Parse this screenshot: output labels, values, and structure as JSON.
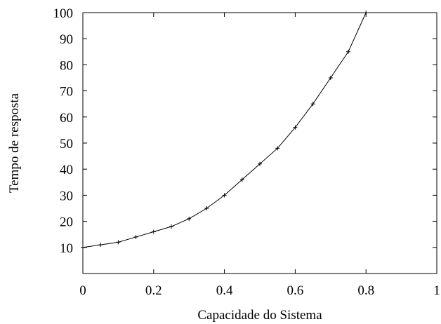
{
  "chart_data": {
    "type": "line",
    "xlabel": "Capacidade do Sistema",
    "ylabel": "Tempo de resposta",
    "xlim": [
      0,
      1
    ],
    "ylim": [
      0,
      100
    ],
    "x_ticks": [
      0,
      0.2,
      0.4,
      0.6,
      0.8,
      1
    ],
    "x_tick_labels": [
      "0",
      "0.2",
      "0.4",
      "0.6",
      "0.8",
      "1"
    ],
    "y_ticks": [
      10,
      20,
      30,
      40,
      50,
      60,
      70,
      80,
      90,
      100
    ],
    "y_tick_labels": [
      "10",
      "20",
      "30",
      "40",
      "50",
      "60",
      "70",
      "80",
      "90",
      "100"
    ],
    "grid": false,
    "marker": "plus",
    "line_color": "#000000",
    "series": [
      {
        "x": [
          0,
          0.05,
          0.1,
          0.15,
          0.2,
          0.25,
          0.3,
          0.35,
          0.4,
          0.45,
          0.5,
          0.55,
          0.6,
          0.65,
          0.7,
          0.75,
          0.8
        ],
        "y": [
          10,
          11,
          12,
          14,
          16,
          18,
          21,
          25,
          30,
          36,
          42,
          48,
          56,
          65,
          75,
          85,
          100
        ]
      }
    ]
  }
}
